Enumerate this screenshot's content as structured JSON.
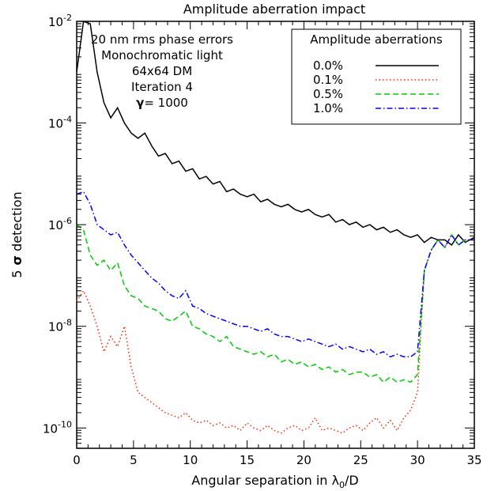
{
  "chart_data": {
    "type": "line",
    "title": "Amplitude aberration impact",
    "xlabel": "Angular separation in λ",
    "xlabel_sub": "0",
    "xlabel_suffix": "/D",
    "ylabel_pre": "5",
    "ylabel_sigma": "σ",
    "ylabel_post": " detection",
    "xlim": [
      0,
      35
    ],
    "ylim_log10": [
      -10.4,
      -2
    ],
    "log_y": true,
    "x_ticks": [
      0,
      5,
      10,
      15,
      20,
      25,
      30,
      35
    ],
    "x_tick_labels": [
      "0",
      "5",
      "10",
      "15",
      "20",
      "25",
      "30",
      "35"
    ],
    "y_ticks": [
      {
        "exp": -2,
        "base": "10",
        "sup": "-2"
      },
      {
        "exp": -4,
        "base": "10",
        "sup": "-4"
      },
      {
        "exp": -6,
        "base": "10",
        "sup": "-6"
      },
      {
        "exp": -8,
        "base": "10",
        "sup": "-8"
      },
      {
        "exp": -10,
        "base": "10",
        "sup": "-10"
      }
    ],
    "annotations": [
      "20 nm rms phase errors",
      "Monochromatic light",
      "64x64 DM",
      "Iteration 4"
    ],
    "gamma_symbol": "γ",
    "gamma_text": "= 1000",
    "legend": {
      "title": "Amplitude aberrations",
      "placement": "top-right",
      "entries": [
        "0.0%",
        "0.1%",
        "0.5%",
        "1.0%"
      ]
    },
    "series": [
      {
        "name": "0.0%",
        "color": "#000000",
        "dash": "solid",
        "x": [
          0,
          0.6,
          1.2,
          1.8,
          2.4,
          3.0,
          3.6,
          4.2,
          4.8,
          5.4,
          6.0,
          6.6,
          7.2,
          7.8,
          8.4,
          9.0,
          9.6,
          10.2,
          10.8,
          11.4,
          12.0,
          12.6,
          13.2,
          13.8,
          14.4,
          15.0,
          15.6,
          16.2,
          16.8,
          17.4,
          18.0,
          18.6,
          19.2,
          19.8,
          20.4,
          21.0,
          21.6,
          22.2,
          22.8,
          23.4,
          24.0,
          24.6,
          25.2,
          25.8,
          26.4,
          27.0,
          27.6,
          28.2,
          28.8,
          29.4,
          30.0,
          30.6,
          31.2,
          31.8,
          32.4,
          33.0,
          33.6,
          34.2,
          35.0
        ],
        "log_y": [
          -3.0,
          -2.0,
          -2.05,
          -3.0,
          -3.6,
          -3.9,
          -3.7,
          -4.0,
          -4.2,
          -4.3,
          -4.2,
          -4.45,
          -4.65,
          -4.6,
          -4.8,
          -4.75,
          -4.95,
          -4.9,
          -5.1,
          -5.05,
          -5.2,
          -5.15,
          -5.35,
          -5.3,
          -5.4,
          -5.45,
          -5.4,
          -5.55,
          -5.5,
          -5.6,
          -5.65,
          -5.6,
          -5.7,
          -5.75,
          -5.7,
          -5.8,
          -5.85,
          -5.8,
          -5.95,
          -5.9,
          -6.0,
          -5.95,
          -6.05,
          -6.0,
          -6.1,
          -6.05,
          -6.15,
          -6.1,
          -6.2,
          -6.25,
          -6.2,
          -6.35,
          -6.25,
          -6.3,
          -6.3,
          -6.4,
          -6.2,
          -6.35,
          -6.25
        ]
      },
      {
        "name": "0.1%",
        "color": "#ff2200",
        "dash": "1.5,3",
        "x": [
          0,
          0.6,
          1.2,
          1.8,
          2.4,
          3.0,
          3.6,
          4.2,
          4.8,
          5.4,
          6.0,
          6.6,
          7.2,
          7.8,
          8.4,
          9.0,
          9.6,
          10.2,
          10.8,
          11.4,
          12.0,
          12.6,
          13.2,
          13.8,
          14.4,
          15.0,
          15.6,
          16.2,
          16.8,
          17.4,
          18.0,
          18.6,
          19.2,
          19.8,
          20.4,
          21.0,
          21.6,
          22.2,
          22.8,
          23.4,
          24.0,
          24.6,
          25.2,
          25.8,
          26.4,
          27.0,
          27.6,
          28.2,
          28.8,
          29.4,
          30.0,
          30.6,
          31.2,
          31.8,
          32.4,
          33.0,
          33.6,
          34.2,
          35.0
        ],
        "log_y": [
          -7.5,
          -7.3,
          -7.6,
          -8.0,
          -8.5,
          -8.2,
          -8.4,
          -8.0,
          -8.8,
          -9.3,
          -9.4,
          -9.5,
          -9.6,
          -9.7,
          -9.75,
          -9.8,
          -9.7,
          -9.85,
          -9.9,
          -9.85,
          -9.95,
          -9.9,
          -10.0,
          -9.95,
          -10.05,
          -9.9,
          -10.0,
          -10.05,
          -9.95,
          -10.05,
          -10.1,
          -10.0,
          -9.95,
          -10.05,
          -10.0,
          -9.8,
          -10.05,
          -10.0,
          -10.05,
          -10.1,
          -10.0,
          -9.95,
          -10.05,
          -9.9,
          -9.8,
          -10.0,
          -9.85,
          -10.05,
          -9.8,
          -9.65,
          -9.3,
          -6.9,
          -6.5,
          -6.3,
          -6.45,
          -6.2,
          -6.4,
          -6.3,
          -6.3
        ]
      },
      {
        "name": "0.5%",
        "color": "#00cc00",
        "dash": "7,4",
        "x": [
          0,
          0.6,
          1.2,
          1.8,
          2.4,
          3.0,
          3.6,
          4.2,
          4.8,
          5.4,
          6.0,
          6.6,
          7.2,
          7.8,
          8.4,
          9.0,
          9.6,
          10.2,
          10.8,
          11.4,
          12.0,
          12.6,
          13.2,
          13.8,
          14.4,
          15.0,
          15.6,
          16.2,
          16.8,
          17.4,
          18.0,
          18.6,
          19.2,
          19.8,
          20.4,
          21.0,
          21.6,
          22.2,
          22.8,
          23.4,
          24.0,
          24.6,
          25.2,
          25.8,
          26.4,
          27.0,
          27.6,
          28.2,
          28.8,
          29.4,
          30.0,
          30.6,
          31.2,
          31.8,
          32.4,
          33.0,
          33.6,
          34.2,
          35.0
        ],
        "log_y": [
          -6.0,
          -6.1,
          -6.6,
          -6.8,
          -6.7,
          -6.9,
          -6.75,
          -7.2,
          -7.4,
          -7.45,
          -7.6,
          -7.65,
          -7.7,
          -7.85,
          -7.9,
          -7.8,
          -7.7,
          -8.0,
          -8.05,
          -8.15,
          -8.2,
          -8.3,
          -8.2,
          -8.4,
          -8.45,
          -8.5,
          -8.55,
          -8.5,
          -8.6,
          -8.55,
          -8.7,
          -8.65,
          -8.75,
          -8.7,
          -8.8,
          -8.75,
          -8.85,
          -8.8,
          -8.9,
          -8.85,
          -8.95,
          -8.9,
          -8.9,
          -9.0,
          -8.95,
          -9.1,
          -9.0,
          -9.1,
          -9.05,
          -9.1,
          -8.95,
          -6.9,
          -6.5,
          -6.3,
          -6.45,
          -6.2,
          -6.4,
          -6.3,
          -6.3
        ]
      },
      {
        "name": "1.0%",
        "color": "#0000ff",
        "dash": "7,3,1.5,3",
        "x": [
          0,
          0.6,
          1.2,
          1.8,
          2.4,
          3.0,
          3.6,
          4.2,
          4.8,
          5.4,
          6.0,
          6.6,
          7.2,
          7.8,
          8.4,
          9.0,
          9.6,
          10.2,
          10.8,
          11.4,
          12.0,
          12.6,
          13.2,
          13.8,
          14.4,
          15.0,
          15.6,
          16.2,
          16.8,
          17.4,
          18.0,
          18.6,
          19.2,
          19.8,
          20.4,
          21.0,
          21.6,
          22.2,
          22.8,
          23.4,
          24.0,
          24.6,
          25.2,
          25.8,
          26.4,
          27.0,
          27.6,
          28.2,
          28.8,
          29.4,
          30.0,
          30.6,
          31.2,
          31.8,
          32.4,
          33.0,
          33.6,
          34.2,
          35.0
        ],
        "log_y": [
          -5.4,
          -5.35,
          -5.6,
          -6.0,
          -6.1,
          -6.2,
          -6.15,
          -6.4,
          -6.6,
          -6.75,
          -6.9,
          -7.05,
          -7.15,
          -7.3,
          -7.4,
          -7.45,
          -7.3,
          -7.6,
          -7.65,
          -7.75,
          -7.8,
          -7.85,
          -7.9,
          -7.95,
          -8.0,
          -8.0,
          -8.05,
          -8.1,
          -8.05,
          -8.15,
          -8.2,
          -8.2,
          -8.25,
          -8.3,
          -8.25,
          -8.3,
          -8.35,
          -8.4,
          -8.35,
          -8.45,
          -8.4,
          -8.45,
          -8.5,
          -8.45,
          -8.55,
          -8.5,
          -8.6,
          -8.55,
          -8.6,
          -8.6,
          -8.5,
          -6.9,
          -6.5,
          -6.3,
          -6.45,
          -6.2,
          -6.4,
          -6.3,
          -6.3
        ]
      }
    ]
  }
}
